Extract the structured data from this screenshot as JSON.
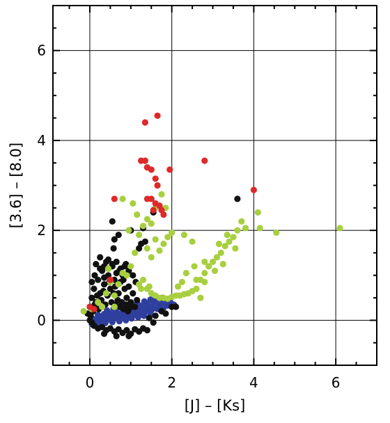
{
  "chart_data": {
    "type": "scatter",
    "title": "",
    "xlabel": "[J] – [Ks]",
    "ylabel": "[3.6] – [8.0]",
    "xlim": [
      -0.9,
      7.0
    ],
    "ylim": [
      -1.0,
      7.0
    ],
    "x_ticks": [
      0,
      2,
      4,
      6
    ],
    "y_ticks": [
      0,
      2,
      4,
      6
    ],
    "x_tick_labels": [
      "0",
      "2",
      "4",
      "6"
    ],
    "y_tick_labels": [
      "0",
      "2",
      "4",
      "6"
    ],
    "grid": true,
    "colors": {
      "black": "#111111",
      "blue": "#2f3f9e",
      "green": "#a8cf3f",
      "red": "#dd2a2a"
    },
    "series": [
      {
        "color_key": "blue",
        "points": [
          [
            0.1,
            0.02
          ],
          [
            0.18,
            0.05
          ],
          [
            0.25,
            -0.02
          ],
          [
            0.32,
            0.08
          ],
          [
            0.4,
            0.03
          ],
          [
            0.48,
            0.1
          ],
          [
            0.55,
            0.05
          ],
          [
            0.62,
            0.12
          ],
          [
            0.7,
            0.08
          ],
          [
            0.78,
            0.15
          ],
          [
            0.85,
            0.1
          ],
          [
            0.92,
            0.18
          ],
          [
            1.0,
            0.14
          ],
          [
            1.08,
            0.2
          ],
          [
            1.15,
            0.16
          ],
          [
            1.22,
            0.25
          ],
          [
            1.3,
            0.2
          ],
          [
            1.38,
            0.28
          ],
          [
            1.45,
            0.24
          ],
          [
            1.52,
            0.3
          ],
          [
            1.6,
            0.27
          ],
          [
            1.68,
            0.34
          ],
          [
            1.75,
            0.3
          ],
          [
            1.82,
            0.36
          ],
          [
            1.9,
            0.33
          ],
          [
            1.98,
            0.38
          ],
          [
            2.05,
            0.35
          ],
          [
            0.15,
            -0.05
          ],
          [
            0.3,
            0.0
          ],
          [
            0.45,
            0.02
          ],
          [
            0.6,
            0.04
          ],
          [
            0.75,
            0.06
          ],
          [
            0.9,
            0.09
          ],
          [
            1.05,
            0.11
          ],
          [
            1.2,
            0.15
          ],
          [
            1.35,
            0.19
          ],
          [
            1.5,
            0.22
          ],
          [
            1.65,
            0.25
          ],
          [
            1.8,
            0.28
          ],
          [
            0.2,
            0.12
          ],
          [
            0.35,
            0.14
          ],
          [
            0.5,
            0.16
          ],
          [
            0.65,
            0.18
          ],
          [
            0.8,
            0.22
          ],
          [
            0.95,
            0.25
          ],
          [
            1.1,
            0.28
          ],
          [
            1.25,
            0.32
          ],
          [
            1.4,
            0.36
          ],
          [
            1.55,
            0.4
          ],
          [
            1.7,
            0.42
          ],
          [
            1.85,
            0.44
          ],
          [
            0.05,
            -0.08
          ],
          [
            0.22,
            -0.1
          ],
          [
            0.38,
            -0.06
          ],
          [
            0.55,
            -0.04
          ],
          [
            0.72,
            -0.02
          ],
          [
            0.88,
            0.0
          ],
          [
            1.02,
            0.04
          ],
          [
            1.18,
            0.07
          ],
          [
            1.32,
            0.1
          ],
          [
            1.48,
            0.13
          ],
          [
            0.42,
            0.22
          ],
          [
            0.58,
            0.26
          ],
          [
            0.73,
            0.3
          ],
          [
            0.88,
            0.34
          ],
          [
            1.02,
            0.36
          ],
          [
            1.16,
            0.38
          ],
          [
            1.33,
            0.42
          ],
          [
            1.48,
            0.46
          ],
          [
            1.62,
            0.48
          ],
          [
            1.78,
            0.5
          ],
          [
            1.95,
            0.46
          ]
        ]
      },
      {
        "color_key": "black",
        "points": [
          [
            0.0,
            0.3
          ],
          [
            0.05,
            0.5
          ],
          [
            0.1,
            0.7
          ],
          [
            0.15,
            0.4
          ],
          [
            0.2,
            0.9
          ],
          [
            0.25,
            0.6
          ],
          [
            0.3,
            1.1
          ],
          [
            0.35,
            0.8
          ],
          [
            0.4,
            1.3
          ],
          [
            0.45,
            1.0
          ],
          [
            0.5,
            0.7
          ],
          [
            0.55,
            1.2
          ],
          [
            0.6,
            0.9
          ],
          [
            0.65,
            1.05
          ],
          [
            0.7,
            0.6
          ],
          [
            0.75,
            0.85
          ],
          [
            0.8,
            1.0
          ],
          [
            0.85,
            0.7
          ],
          [
            0.9,
            0.5
          ],
          [
            0.95,
            0.75
          ],
          [
            1.0,
            0.4
          ],
          [
            1.05,
            0.6
          ],
          [
            1.1,
            0.3
          ],
          [
            1.15,
            0.45
          ],
          [
            0.02,
            0.1
          ],
          [
            0.08,
            0.2
          ],
          [
            0.12,
            0.35
          ],
          [
            0.18,
            0.55
          ],
          [
            0.22,
            0.25
          ],
          [
            0.28,
            0.45
          ],
          [
            0.33,
            0.65
          ],
          [
            0.38,
            0.35
          ],
          [
            0.43,
            0.55
          ],
          [
            0.48,
            0.85
          ],
          [
            0.53,
            0.4
          ],
          [
            0.58,
            0.6
          ],
          [
            0.63,
            0.35
          ],
          [
            0.68,
            0.45
          ],
          [
            0.73,
            0.3
          ],
          [
            0.78,
            0.4
          ],
          [
            0.83,
            0.25
          ],
          [
            0.88,
            0.35
          ],
          [
            0.93,
            0.2
          ],
          [
            0.98,
            0.28
          ],
          [
            0.1,
            -0.12
          ],
          [
            0.2,
            -0.18
          ],
          [
            0.3,
            -0.15
          ],
          [
            0.4,
            -0.22
          ],
          [
            0.5,
            -0.18
          ],
          [
            0.6,
            -0.25
          ],
          [
            0.7,
            -0.2
          ],
          [
            0.8,
            -0.28
          ],
          [
            0.9,
            -0.22
          ],
          [
            1.0,
            -0.3
          ],
          [
            1.1,
            -0.2
          ],
          [
            1.2,
            -0.25
          ],
          [
            1.3,
            -0.18
          ],
          [
            1.4,
            -0.22
          ],
          [
            0.15,
            1.25
          ],
          [
            0.25,
            1.4
          ],
          [
            0.35,
            1.2
          ],
          [
            0.45,
            1.35
          ],
          [
            0.55,
            1.25
          ],
          [
            0.65,
            1.3
          ],
          [
            0.75,
            1.15
          ],
          [
            0.85,
            1.2
          ],
          [
            0.95,
            1.1
          ],
          [
            0.55,
            2.2
          ],
          [
            0.6,
            1.8
          ],
          [
            0.58,
            1.6
          ],
          [
            0.7,
            1.9
          ],
          [
            1.0,
            2.0
          ],
          [
            1.3,
            2.05
          ],
          [
            1.55,
            2.4
          ],
          [
            1.25,
            1.7
          ],
          [
            1.2,
            1.6
          ],
          [
            1.35,
            1.75
          ],
          [
            3.6,
            2.7
          ],
          [
            0.05,
            0.85
          ],
          [
            0.12,
            1.0
          ],
          [
            0.0,
            0.0
          ],
          [
            -0.05,
            0.15
          ],
          [
            0.25,
            1.15
          ],
          [
            0.35,
            0.95
          ],
          [
            0.45,
            1.15
          ],
          [
            0.62,
            0.75
          ],
          [
            0.72,
            1.1
          ],
          [
            0.82,
            0.9
          ],
          [
            1.6,
            0.1
          ],
          [
            1.75,
            0.2
          ],
          [
            1.85,
            0.15
          ],
          [
            2.0,
            0.3
          ],
          [
            2.1,
            0.3
          ],
          [
            1.45,
            0.05
          ],
          [
            1.55,
            -0.05
          ],
          [
            0.95,
            -0.35
          ],
          [
            0.65,
            -0.35
          ],
          [
            0.35,
            -0.3
          ],
          [
            0.05,
            -0.05
          ],
          [
            1.12,
            0.85
          ],
          [
            1.05,
            1.0
          ],
          [
            0.88,
            1.25
          ]
        ]
      },
      {
        "color_key": "green",
        "points": [
          [
            -0.15,
            0.2
          ],
          [
            0.05,
            0.25
          ],
          [
            0.2,
            0.4
          ],
          [
            0.4,
            0.6
          ],
          [
            0.5,
            0.85
          ],
          [
            0.6,
            0.55
          ],
          [
            0.7,
            0.8
          ],
          [
            0.8,
            1.05
          ],
          [
            0.9,
            1.0
          ],
          [
            1.0,
            1.2
          ],
          [
            1.1,
            1.5
          ],
          [
            1.2,
            1.9
          ],
          [
            1.3,
            2.1
          ],
          [
            1.4,
            1.6
          ],
          [
            1.5,
            1.4
          ],
          [
            1.6,
            1.8
          ],
          [
            1.7,
            1.55
          ],
          [
            1.8,
            1.7
          ],
          [
            1.9,
            1.85
          ],
          [
            2.0,
            1.95
          ],
          [
            1.2,
            0.8
          ],
          [
            1.3,
            0.9
          ],
          [
            1.4,
            0.7
          ],
          [
            1.5,
            0.6
          ],
          [
            1.6,
            0.55
          ],
          [
            1.7,
            0.5
          ],
          [
            1.8,
            0.5
          ],
          [
            1.9,
            0.48
          ],
          [
            2.0,
            0.52
          ],
          [
            2.1,
            0.55
          ],
          [
            2.2,
            0.55
          ],
          [
            2.3,
            0.58
          ],
          [
            2.4,
            0.6
          ],
          [
            2.5,
            0.65
          ],
          [
            2.6,
            0.7
          ],
          [
            2.7,
            0.9
          ],
          [
            2.8,
            1.05
          ],
          [
            2.9,
            1.2
          ],
          [
            3.0,
            1.3
          ],
          [
            3.1,
            1.4
          ],
          [
            3.2,
            1.5
          ],
          [
            3.3,
            1.65
          ],
          [
            3.4,
            1.75
          ],
          [
            3.5,
            1.85
          ],
          [
            3.6,
            2.0
          ],
          [
            3.7,
            2.2
          ],
          [
            3.8,
            2.05
          ],
          [
            4.1,
            2.4
          ],
          [
            4.15,
            2.05
          ],
          [
            4.55,
            1.95
          ],
          [
            6.1,
            2.05
          ],
          [
            0.8,
            2.7
          ],
          [
            1.05,
            2.6
          ],
          [
            0.95,
            2.0
          ],
          [
            1.5,
            2.15
          ],
          [
            1.6,
            2.5
          ],
          [
            1.75,
            2.8
          ],
          [
            1.85,
            2.5
          ],
          [
            2.3,
            1.9
          ],
          [
            2.5,
            1.75
          ],
          [
            2.8,
            1.3
          ],
          [
            2.55,
            1.2
          ],
          [
            2.35,
            1.05
          ],
          [
            2.25,
            0.85
          ],
          [
            3.05,
            1.1
          ],
          [
            3.25,
            1.25
          ],
          [
            3.55,
            1.6
          ],
          [
            2.7,
            0.5
          ],
          [
            0.6,
            0.3
          ],
          [
            0.3,
            0.3
          ],
          [
            0.45,
            1.15
          ],
          [
            1.25,
            0.7
          ],
          [
            1.45,
            0.75
          ],
          [
            2.15,
            0.75
          ],
          [
            1.15,
            2.35
          ],
          [
            1.4,
            2.25
          ],
          [
            2.6,
            0.9
          ],
          [
            2.8,
            0.85
          ],
          [
            3.15,
            1.7
          ],
          [
            3.35,
            1.9
          ]
        ]
      },
      {
        "color_key": "red",
        "points": [
          [
            1.65,
            4.55
          ],
          [
            1.35,
            4.4
          ],
          [
            1.25,
            3.55
          ],
          [
            1.35,
            3.55
          ],
          [
            1.4,
            3.4
          ],
          [
            1.5,
            3.35
          ],
          [
            1.95,
            3.35
          ],
          [
            1.6,
            3.15
          ],
          [
            1.65,
            3.0
          ],
          [
            1.4,
            2.7
          ],
          [
            1.5,
            2.7
          ],
          [
            1.6,
            2.6
          ],
          [
            1.55,
            2.45
          ],
          [
            1.75,
            2.45
          ],
          [
            1.8,
            2.35
          ],
          [
            1.7,
            2.55
          ],
          [
            2.8,
            3.55
          ],
          [
            4.0,
            2.9
          ],
          [
            0.6,
            2.7
          ],
          [
            0.5,
            0.9
          ],
          [
            0.0,
            0.3
          ],
          [
            0.1,
            0.25
          ]
        ]
      }
    ]
  }
}
